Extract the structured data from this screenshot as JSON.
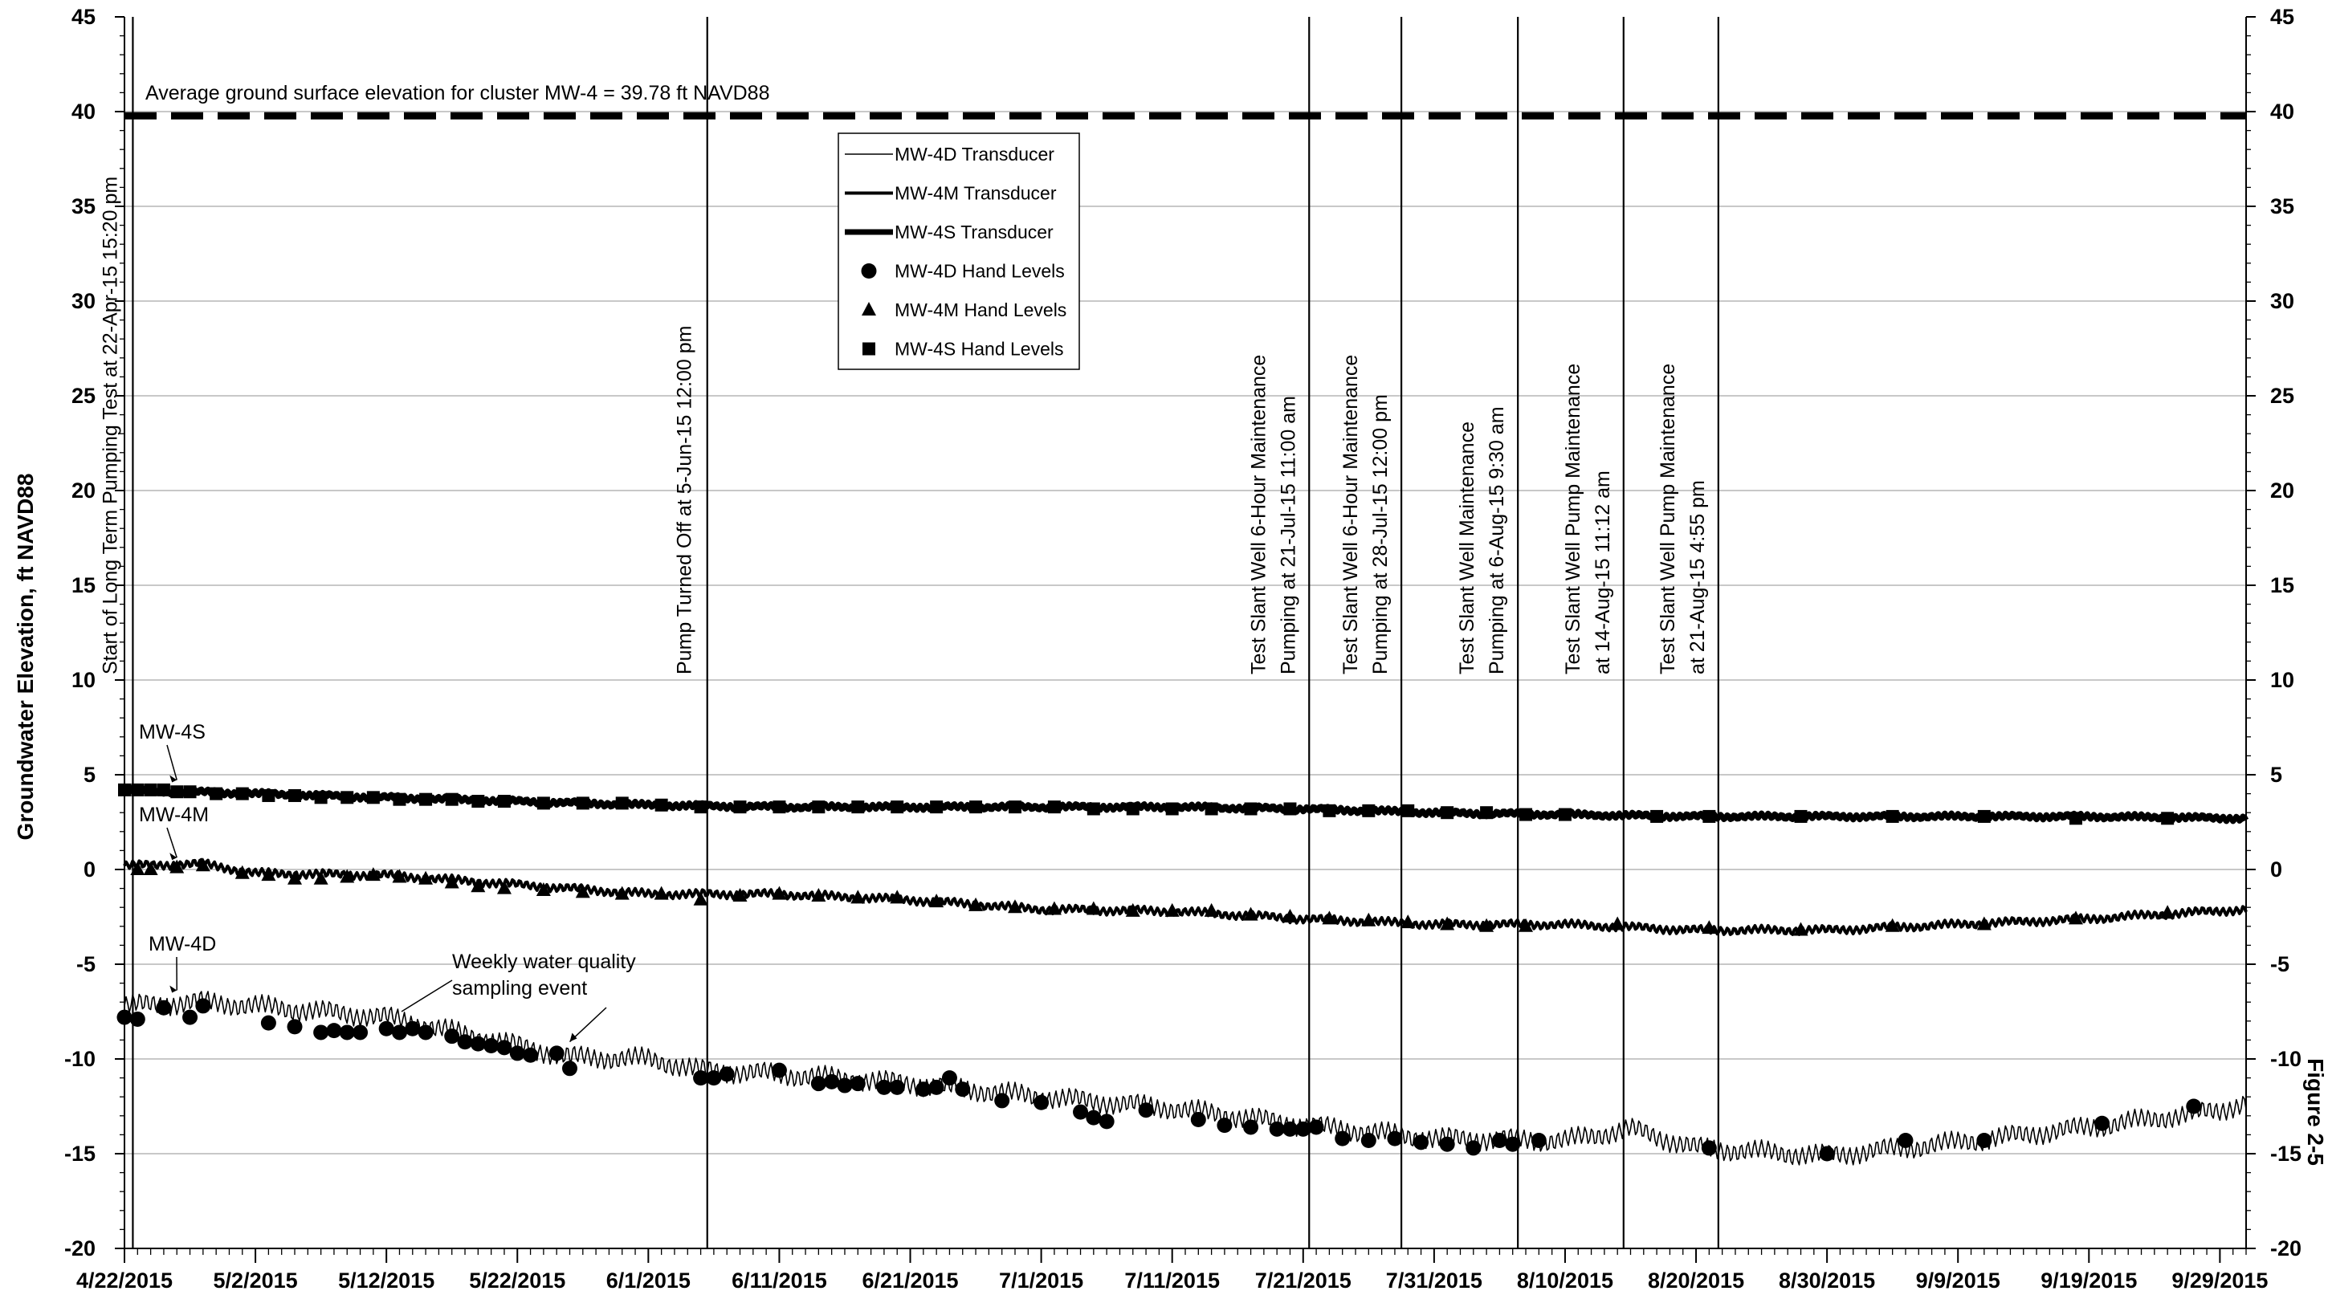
{
  "chart_data": {
    "type": "line",
    "ylabel": "Groundwater Elevation, ft NAVD88",
    "side_label": "Figure 2-5",
    "ylim": [
      -20,
      45
    ],
    "yticks": [
      -20,
      -15,
      -10,
      -5,
      0,
      5,
      10,
      15,
      20,
      25,
      30,
      35,
      40,
      45
    ],
    "ytick_labels": [
      "-20",
      "-15",
      "-10",
      "-5",
      "0",
      "5",
      "10",
      "15",
      "20",
      "25",
      "30",
      "35",
      "40",
      "45"
    ],
    "xticks": [
      "2015-04-22",
      "2015-05-02",
      "2015-05-12",
      "2015-05-22",
      "2015-06-01",
      "2015-06-11",
      "2015-06-21",
      "2015-07-01",
      "2015-07-11",
      "2015-07-21",
      "2015-07-31",
      "2015-08-10",
      "2015-08-20",
      "2015-08-30",
      "2015-09-09",
      "2015-09-19",
      "2015-09-29"
    ],
    "xtick_labels": [
      "4/22/2015",
      "5/2/2015",
      "5/12/2015",
      "5/22/2015",
      "6/1/2015",
      "6/11/2015",
      "6/21/2015",
      "7/1/2015",
      "7/11/2015",
      "7/21/2015",
      "7/31/2015",
      "8/10/2015",
      "8/20/2015",
      "8/30/2015",
      "9/9/2015",
      "9/19/2015",
      "9/29/2015"
    ],
    "xlim": [
      "2015-04-22",
      "2015-10-01"
    ],
    "grid": "horizontal",
    "reference_line": {
      "y": 39.78,
      "label": "Average ground surface elevation for cluster MW-4 = 39.78 ft NAVD88"
    },
    "events": [
      {
        "date": "2015-04-22T15:20",
        "lines": [
          "Start of Long Term Pumping Test at 22-Apr-15 15:20 pm"
        ]
      },
      {
        "date": "2015-06-05T12:00",
        "lines": [
          "Pump Turned Off at 5-Jun-15 12:00 pm"
        ]
      },
      {
        "date": "2015-07-21T11:00",
        "lines": [
          "Test Slant Well 6-Hour Maintenance",
          "Pumping at 21-Jul-15 11:00 am"
        ]
      },
      {
        "date": "2015-07-28T12:00",
        "lines": [
          "Test Slant Well 6-Hour Maintenance",
          "Pumping at 28-Jul-15 12:00 pm"
        ]
      },
      {
        "date": "2015-08-06T09:30",
        "lines": [
          "Test Slant Well Maintenance",
          "Pumping at 6-Aug-15 9:30 am"
        ]
      },
      {
        "date": "2015-08-14T11:12",
        "lines": [
          "Test Slant Well Pump Maintenance",
          "at 14-Aug-15 11:12 am"
        ]
      },
      {
        "date": "2015-08-21T16:55",
        "lines": [
          "Test Slant Well Pump Maintenance",
          "at 21-Aug-15 4:55 pm"
        ]
      }
    ],
    "series_labels": [
      {
        "text": "MW-4S",
        "target_date": "2015-04-26",
        "target_y": 4.3
      },
      {
        "text": "MW-4M",
        "target_date": "2015-04-26",
        "target_y": 0.2
      },
      {
        "text": "MW-4D",
        "target_date": "2015-04-26",
        "target_y": -6.8
      }
    ],
    "callout": {
      "lines": [
        "Weekly water quality",
        "sampling event"
      ],
      "target_date": "2015-05-26",
      "target_y": -9.6
    },
    "legend": {
      "position": "top-center",
      "items": [
        {
          "label": "MW-4D Transducer",
          "kind": "line",
          "weight": "thin"
        },
        {
          "label": "MW-4M Transducer",
          "kind": "line",
          "weight": "medium"
        },
        {
          "label": "MW-4S Transducer",
          "kind": "line",
          "weight": "thick"
        },
        {
          "label": "MW-4D Hand Levels",
          "kind": "circle"
        },
        {
          "label": "MW-4M Hand Levels",
          "kind": "triangle"
        },
        {
          "label": "MW-4S Hand Levels",
          "kind": "square"
        }
      ]
    },
    "series": [
      {
        "name": "MW-4S Transducer",
        "style": "thick",
        "color": "#000000",
        "x": [
          "2015-04-22",
          "2015-05-02",
          "2015-05-12",
          "2015-05-22",
          "2015-06-01",
          "2015-06-11",
          "2015-06-21",
          "2015-07-01",
          "2015-07-11",
          "2015-07-21",
          "2015-07-31",
          "2015-08-10",
          "2015-08-20",
          "2015-08-30",
          "2015-09-09",
          "2015-09-19",
          "2015-10-01"
        ],
        "y": [
          4.2,
          4.0,
          3.8,
          3.6,
          3.4,
          3.3,
          3.3,
          3.3,
          3.3,
          3.2,
          3.0,
          2.9,
          2.8,
          2.8,
          2.8,
          2.8,
          2.7
        ]
      },
      {
        "name": "MW-4M Transducer",
        "style": "medium",
        "color": "#000000",
        "x": [
          "2015-04-22",
          "2015-04-28",
          "2015-05-02",
          "2015-05-12",
          "2015-05-22",
          "2015-06-01",
          "2015-06-11",
          "2015-06-21",
          "2015-07-01",
          "2015-07-11",
          "2015-07-21",
          "2015-07-31",
          "2015-08-10",
          "2015-08-20",
          "2015-08-30",
          "2015-09-09",
          "2015-09-19",
          "2015-10-01"
        ],
        "y": [
          0.2,
          0.3,
          -0.2,
          -0.3,
          -0.8,
          -1.3,
          -1.3,
          -1.6,
          -2.1,
          -2.2,
          -2.6,
          -2.9,
          -2.9,
          -3.2,
          -3.2,
          -2.9,
          -2.6,
          -2.1
        ]
      },
      {
        "name": "MW-4D Transducer",
        "style": "thin",
        "color": "#000000",
        "x": [
          "2015-04-22",
          "2015-04-28",
          "2015-05-02",
          "2015-05-12",
          "2015-05-22",
          "2015-05-26",
          "2015-06-01",
          "2015-06-05",
          "2015-06-11",
          "2015-06-21",
          "2015-07-01",
          "2015-07-11",
          "2015-07-21",
          "2015-07-31",
          "2015-08-10",
          "2015-08-15",
          "2015-08-20",
          "2015-08-30",
          "2015-09-09",
          "2015-09-19",
          "2015-09-29",
          "2015-10-01"
        ],
        "y": [
          -7.2,
          -7.0,
          -7.2,
          -7.8,
          -9.3,
          -9.9,
          -10.0,
          -10.6,
          -10.8,
          -11.3,
          -12.0,
          -12.6,
          -13.5,
          -14.2,
          -14.3,
          -13.7,
          -14.7,
          -15.1,
          -14.4,
          -13.6,
          -12.7,
          -12.3
        ]
      }
    ],
    "hand_levels": [
      {
        "name": "MW-4S Hand Levels",
        "marker": "square",
        "x": [
          "2015-04-22",
          "2015-04-23",
          "2015-04-24",
          "2015-04-25",
          "2015-04-26",
          "2015-04-27",
          "2015-04-29",
          "2015-05-01",
          "2015-05-03",
          "2015-05-05",
          "2015-05-07",
          "2015-05-09",
          "2015-05-11",
          "2015-05-13",
          "2015-05-15",
          "2015-05-17",
          "2015-05-19",
          "2015-05-21",
          "2015-05-24",
          "2015-05-27",
          "2015-05-30",
          "2015-06-02",
          "2015-06-05",
          "2015-06-08",
          "2015-06-11",
          "2015-06-14",
          "2015-06-17",
          "2015-06-20",
          "2015-06-23",
          "2015-06-26",
          "2015-06-29",
          "2015-07-02",
          "2015-07-05",
          "2015-07-08",
          "2015-07-11",
          "2015-07-14",
          "2015-07-17",
          "2015-07-20",
          "2015-07-23",
          "2015-07-26",
          "2015-07-29",
          "2015-08-01",
          "2015-08-04",
          "2015-08-07",
          "2015-08-10",
          "2015-08-17",
          "2015-08-21",
          "2015-08-28",
          "2015-09-04",
          "2015-09-11",
          "2015-09-18",
          "2015-09-25"
        ],
        "y": [
          4.2,
          4.2,
          4.2,
          4.2,
          4.1,
          4.1,
          4.0,
          4.0,
          3.9,
          3.9,
          3.8,
          3.8,
          3.8,
          3.7,
          3.7,
          3.7,
          3.6,
          3.6,
          3.5,
          3.5,
          3.5,
          3.4,
          3.3,
          3.3,
          3.3,
          3.3,
          3.3,
          3.3,
          3.3,
          3.3,
          3.3,
          3.3,
          3.2,
          3.2,
          3.2,
          3.2,
          3.2,
          3.2,
          3.1,
          3.1,
          3.1,
          3.0,
          3.0,
          2.9,
          2.9,
          2.8,
          2.8,
          2.8,
          2.8,
          2.8,
          2.7,
          2.7
        ]
      },
      {
        "name": "MW-4M Hand Levels",
        "marker": "triangle",
        "x": [
          "2015-04-23",
          "2015-04-24",
          "2015-04-26",
          "2015-04-28",
          "2015-05-01",
          "2015-05-03",
          "2015-05-05",
          "2015-05-07",
          "2015-05-09",
          "2015-05-11",
          "2015-05-13",
          "2015-05-15",
          "2015-05-17",
          "2015-05-19",
          "2015-05-21",
          "2015-05-24",
          "2015-05-27",
          "2015-05-30",
          "2015-06-02",
          "2015-06-05",
          "2015-06-08",
          "2015-06-11",
          "2015-06-14",
          "2015-06-17",
          "2015-06-20",
          "2015-06-23",
          "2015-06-26",
          "2015-06-29",
          "2015-07-02",
          "2015-07-05",
          "2015-07-08",
          "2015-07-11",
          "2015-07-14",
          "2015-07-17",
          "2015-07-20",
          "2015-07-23",
          "2015-07-26",
          "2015-07-29",
          "2015-08-01",
          "2015-08-04",
          "2015-08-07",
          "2015-08-14",
          "2015-08-21",
          "2015-08-28",
          "2015-09-04",
          "2015-09-11",
          "2015-09-18",
          "2015-09-25"
        ],
        "y": [
          0.0,
          0.0,
          0.1,
          0.2,
          -0.2,
          -0.3,
          -0.5,
          -0.5,
          -0.4,
          -0.3,
          -0.4,
          -0.5,
          -0.7,
          -0.9,
          -1.0,
          -1.1,
          -1.2,
          -1.3,
          -1.3,
          -1.6,
          -1.4,
          -1.3,
          -1.4,
          -1.5,
          -1.5,
          -1.7,
          -1.9,
          -2.0,
          -2.1,
          -2.1,
          -2.2,
          -2.2,
          -2.2,
          -2.4,
          -2.5,
          -2.6,
          -2.7,
          -2.8,
          -2.9,
          -3.0,
          -3.0,
          -2.9,
          -3.1,
          -3.2,
          -3.0,
          -2.9,
          -2.6,
          -2.3
        ]
      },
      {
        "name": "MW-4D Hand Levels",
        "marker": "circle",
        "x": [
          "2015-04-22",
          "2015-04-23",
          "2015-04-25",
          "2015-04-27",
          "2015-04-28",
          "2015-05-03",
          "2015-05-05",
          "2015-05-07",
          "2015-05-08",
          "2015-05-09",
          "2015-05-10",
          "2015-05-12",
          "2015-05-13",
          "2015-05-14",
          "2015-05-15",
          "2015-05-17",
          "2015-05-18",
          "2015-05-19",
          "2015-05-20",
          "2015-05-21",
          "2015-05-22",
          "2015-05-23",
          "2015-05-25",
          "2015-05-26",
          "2015-06-05",
          "2015-06-06",
          "2015-06-07",
          "2015-06-11",
          "2015-06-14",
          "2015-06-15",
          "2015-06-16",
          "2015-06-17",
          "2015-06-19",
          "2015-06-20",
          "2015-06-22",
          "2015-06-23",
          "2015-06-24",
          "2015-06-25",
          "2015-06-28",
          "2015-07-01",
          "2015-07-04",
          "2015-07-05",
          "2015-07-06",
          "2015-07-09",
          "2015-07-13",
          "2015-07-15",
          "2015-07-17",
          "2015-07-19",
          "2015-07-20",
          "2015-07-21",
          "2015-07-22",
          "2015-07-24",
          "2015-07-26",
          "2015-07-28",
          "2015-07-30",
          "2015-08-01",
          "2015-08-03",
          "2015-08-05",
          "2015-08-06",
          "2015-08-08",
          "2015-08-21",
          "2015-08-30",
          "2015-09-05",
          "2015-09-11",
          "2015-09-20",
          "2015-09-27"
        ],
        "y": [
          -7.8,
          -7.9,
          -7.3,
          -7.8,
          -7.2,
          -8.1,
          -8.3,
          -8.6,
          -8.5,
          -8.6,
          -8.6,
          -8.4,
          -8.6,
          -8.4,
          -8.6,
          -8.8,
          -9.1,
          -9.2,
          -9.3,
          -9.4,
          -9.7,
          -9.8,
          -9.7,
          -10.5,
          -11.0,
          -11.0,
          -10.8,
          -10.6,
          -11.3,
          -11.2,
          -11.4,
          -11.3,
          -11.5,
          -11.5,
          -11.6,
          -11.5,
          -11.0,
          -11.6,
          -12.2,
          -12.3,
          -12.8,
          -13.1,
          -13.3,
          -12.7,
          -13.2,
          -13.5,
          -13.6,
          -13.7,
          -13.7,
          -13.7,
          -13.6,
          -14.2,
          -14.3,
          -14.2,
          -14.4,
          -14.5,
          -14.7,
          -14.3,
          -14.5,
          -14.3,
          -14.7,
          -15.0,
          -14.3,
          -14.3,
          -13.4,
          -12.5
        ]
      }
    ]
  }
}
